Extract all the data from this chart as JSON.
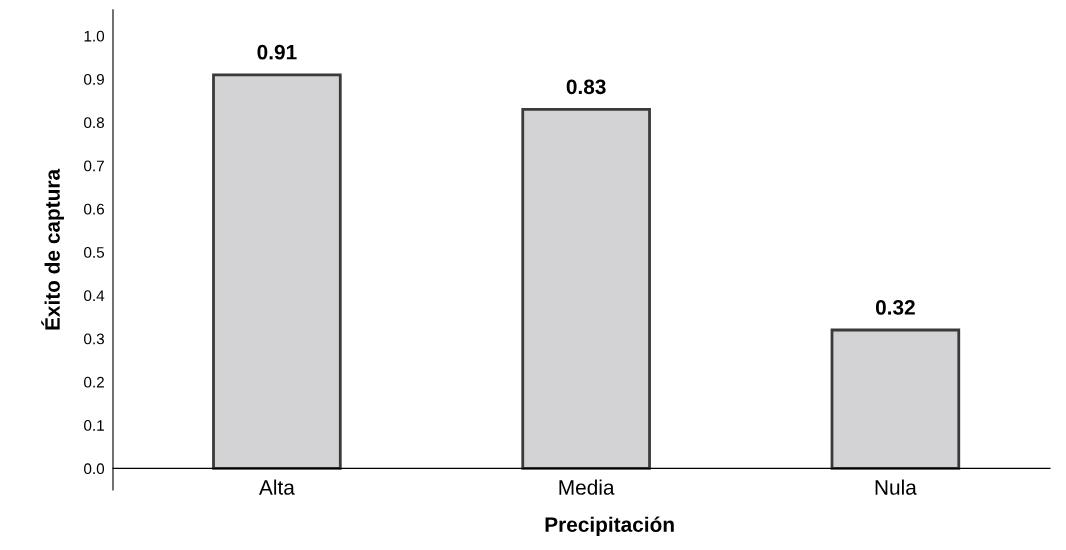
{
  "chart_data": {
    "type": "bar",
    "xlabel": "Precipitación",
    "ylabel": "Éxito de captura",
    "categories": [
      "Alta",
      "Media",
      "Nula"
    ],
    "values": [
      0.91,
      0.83,
      0.32
    ],
    "color": "#d3d3d5",
    "ylim": [
      -0.05,
      1.06
    ],
    "yticks": [
      {
        "value": 0,
        "label": "0.0"
      },
      {
        "value": 0.1,
        "label": "0.1"
      },
      {
        "value": 0.2,
        "label": "0.2"
      },
      {
        "value": 0.3,
        "label": "0.3"
      },
      {
        "value": 0.4,
        "label": "0.4"
      },
      {
        "value": 0.5,
        "label": "0.5"
      },
      {
        "value": 0.6,
        "label": "0.6"
      },
      {
        "value": 0.7,
        "label": "0.7"
      },
      {
        "value": 0.8,
        "label": "0.8"
      },
      {
        "value": 0.9,
        "label": "0.9"
      },
      {
        "value": 1.0,
        "label": "1.0"
      }
    ],
    "data_labels": true,
    "grid": false,
    "legend": false
  }
}
